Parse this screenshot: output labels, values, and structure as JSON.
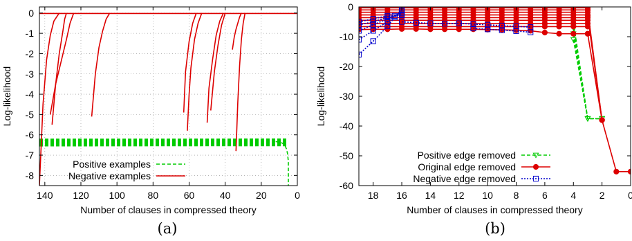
{
  "chart_data": [
    {
      "type": "line",
      "panel_label": "(a)",
      "xlabel": "Number of clauses in compressed theory",
      "ylabel": "Log-likelihood",
      "x_reversed": true,
      "xlim": [
        143,
        0
      ],
      "ylim": [
        -8.5,
        0.3
      ],
      "xticks": [
        140,
        120,
        100,
        80,
        60,
        40,
        20,
        0
      ],
      "yticks": [
        0,
        -1,
        -2,
        -3,
        -4,
        -5,
        -6,
        -7,
        -8
      ],
      "grid": true,
      "legend_position": "bottom-left",
      "series": [
        {
          "name": "Positive examples",
          "color": "#00cc00",
          "dash": "dashed",
          "bands": [
            {
              "x": [
                143,
                5
              ],
              "y_top": -6.2,
              "y_bottom": -6.55
            },
            {
              "x": [
                143,
                121
              ],
              "y_top": -6.3,
              "y_bottom": -6.5
            }
          ],
          "tail": {
            "x": [
              12,
              9,
              7,
              6,
              5.5,
              5,
              5,
              5
            ],
            "y": [
              -6.33,
              -6.38,
              -6.48,
              -6.7,
              -6.9,
              -7.3,
              -8.0,
              -8.5
            ]
          }
        },
        {
          "name": "Negative examples",
          "color": "#dd0000",
          "dash": "solid",
          "flat": {
            "x": [
              143,
              0
            ],
            "y": [
              -0.02,
              -0.02
            ]
          },
          "curves": [
            {
              "x": [
                143,
                141,
                139,
                137,
                135,
                132
              ],
              "y": [
                -8.5,
                -4.5,
                -2.3,
                -1.1,
                -0.4,
                0
              ]
            },
            {
              "x": [
                136,
                134,
                132,
                130,
                129,
                128
              ],
              "y": [
                -5.5,
                -3.5,
                -2.0,
                -0.9,
                -0.3,
                0
              ]
            },
            {
              "x": [
                137,
                134,
                131,
                128,
                126,
                124
              ],
              "y": [
                -5.0,
                -3.5,
                -2.4,
                -1.3,
                -0.5,
                0
              ]
            },
            {
              "x": [
                114,
                112,
                110,
                108,
                106,
                104
              ],
              "y": [
                -5.1,
                -3.0,
                -1.7,
                -0.9,
                -0.3,
                0
              ]
            },
            {
              "x": [
                63,
                62,
                60,
                58,
                56
              ],
              "y": [
                -4.9,
                -2.9,
                -1.4,
                -0.5,
                0
              ]
            },
            {
              "x": [
                61,
                60,
                59,
                57,
                55,
                53
              ],
              "y": [
                -5.8,
                -4.0,
                -2.7,
                -1.3,
                -0.5,
                0
              ]
            },
            {
              "x": [
                50,
                49,
                47,
                45,
                43,
                41
              ],
              "y": [
                -5.4,
                -3.7,
                -2.3,
                -1.1,
                -0.4,
                0
              ]
            },
            {
              "x": [
                48,
                46,
                44,
                42,
                40
              ],
              "y": [
                -4.8,
                -2.9,
                -1.6,
                -0.6,
                0
              ]
            },
            {
              "x": [
                36,
                35,
                34,
                33,
                32,
                31
              ],
              "y": [
                -1.8,
                -1.2,
                -0.8,
                -0.5,
                -0.2,
                0
              ]
            },
            {
              "x": [
                34,
                33,
                32,
                31,
                30,
                29
              ],
              "y": [
                -6.8,
                -4.4,
                -2.6,
                -1.3,
                -0.5,
                0
              ]
            }
          ]
        }
      ]
    },
    {
      "type": "line",
      "panel_label": "(b)",
      "xlabel": "Number of clauses in compressed theory",
      "ylabel": "Log-likelihood",
      "x_reversed": true,
      "xlim": [
        19,
        0
      ],
      "ylim": [
        -60,
        0
      ],
      "xticks": [
        18,
        16,
        14,
        12,
        10,
        8,
        6,
        4,
        2,
        0
      ],
      "yticks": [
        0,
        -10,
        -20,
        -30,
        -40,
        -50,
        -60
      ],
      "grid": false,
      "legend_position": "bottom-left",
      "series": [
        {
          "name": "Positive edge removed",
          "color": "#00cc00",
          "dash": "dashed",
          "marker": "triangle-down",
          "lines": [
            {
              "x": [
                4,
                3,
                2
              ],
              "y": [
                -5,
                -37.5,
                -37.5
              ]
            },
            {
              "x": [
                4,
                3,
                2
              ],
              "y": [
                -7,
                -37.5,
                -37.5
              ]
            },
            {
              "x": [
                4,
                3,
                2
              ],
              "y": [
                -9,
                -37.5,
                -37.5
              ]
            },
            {
              "x": [
                4,
                3,
                2
              ],
              "y": [
                -11,
                -37.5,
                -37.5
              ]
            }
          ]
        },
        {
          "name": "Original edge removed",
          "color": "#dd0000",
          "dash": "solid",
          "marker": "circle",
          "lines": [
            {
              "x": [
                19,
                18,
                17,
                16,
                15,
                14,
                13,
                12,
                11,
                10,
                9,
                8,
                7,
                6,
                5,
                4,
                3
              ],
              "y": [
                -0.3,
                -0.3,
                -0.3,
                -0.3,
                -0.3,
                -0.3,
                -0.3,
                -0.3,
                -0.3,
                -0.3,
                -0.3,
                -0.3,
                -0.3,
                -0.3,
                -0.3,
                -0.3,
                -0.3
              ]
            },
            {
              "x": [
                19,
                18,
                17,
                16,
                15,
                14,
                13,
                12,
                11,
                10,
                9,
                8,
                7,
                6,
                5,
                4,
                3
              ],
              "y": [
                -1,
                -1,
                -1,
                -1,
                -1,
                -1,
                -1,
                -1,
                -1,
                -1,
                -1,
                -1,
                -1,
                -1,
                -1,
                -1,
                -1
              ]
            },
            {
              "x": [
                19,
                18,
                17,
                16,
                15,
                14,
                13,
                12,
                11,
                10,
                9,
                8,
                7,
                6,
                5,
                4,
                3
              ],
              "y": [
                -1.8,
                -1.8,
                -1.8,
                -1.8,
                -1.8,
                -1.8,
                -1.8,
                -1.8,
                -1.8,
                -1.8,
                -1.8,
                -1.8,
                -1.8,
                -1.8,
                -1.8,
                -1.8,
                -1.8
              ]
            },
            {
              "x": [
                19,
                18,
                17,
                16,
                15,
                14,
                13,
                12,
                11,
                10,
                9,
                8,
                7,
                6,
                5,
                4,
                3
              ],
              "y": [
                -2.7,
                -2.7,
                -2.7,
                -2.7,
                -2.7,
                -2.7,
                -2.7,
                -2.7,
                -2.7,
                -2.7,
                -2.7,
                -2.7,
                -2.7,
                -2.7,
                -2.7,
                -2.7,
                -2.7
              ]
            },
            {
              "x": [
                19,
                18,
                17,
                16,
                15,
                14,
                13,
                12,
                11,
                10,
                9,
                8,
                7,
                6,
                5,
                4,
                3
              ],
              "y": [
                -3.6,
                -3.6,
                -3.6,
                -3.6,
                -3.6,
                -3.6,
                -3.6,
                -3.6,
                -3.6,
                -3.6,
                -3.6,
                -3.6,
                -3.6,
                -3.6,
                -3.6,
                -3.6,
                -3.6
              ]
            },
            {
              "x": [
                19,
                18,
                17,
                16,
                15,
                14,
                13,
                12,
                11,
                10,
                9,
                8,
                7,
                6,
                5,
                4,
                3
              ],
              "y": [
                -4.5,
                -4.5,
                -4.5,
                -4.5,
                -4.5,
                -4.5,
                -4.5,
                -4.5,
                -4.5,
                -4.5,
                -4.5,
                -4.5,
                -4.5,
                -4.5,
                -4.5,
                -4.5,
                -4.5
              ]
            },
            {
              "x": [
                19,
                18,
                17,
                16,
                15,
                14,
                13,
                12,
                11,
                10,
                9,
                8,
                7,
                6,
                5,
                4,
                3
              ],
              "y": [
                -5.6,
                -5.6,
                -5.6,
                -5.6,
                -5.6,
                -5.6,
                -5.6,
                -5.6,
                -5.6,
                -5.6,
                -5.6,
                -5.6,
                -5.6,
                -5.6,
                -5.6,
                -5.6,
                -5.6
              ]
            },
            {
              "x": [
                19,
                18,
                17,
                16,
                15,
                14,
                13,
                12,
                11,
                10,
                9,
                8,
                7,
                6,
                5,
                4,
                3
              ],
              "y": [
                -6.6,
                -6.6,
                -6.6,
                -6.6,
                -6.6,
                -6.6,
                -6.6,
                -6.6,
                -6.6,
                -6.6,
                -6.6,
                -6.6,
                -6.6,
                -6.6,
                -6.6,
                -6.6,
                -6.6
              ]
            },
            {
              "x": [
                19,
                18,
                17,
                16,
                15,
                14,
                13,
                12,
                11,
                10,
                9,
                8,
                7,
                6,
                5,
                4,
                3
              ],
              "y": [
                -7.6,
                -7.5,
                -7.5,
                -7.4,
                -7.4,
                -7.5,
                -7.5,
                -7.5,
                -7.5,
                -7.6,
                -7.7,
                -7.8,
                -8.0,
                -8.6,
                -9.0,
                -9.0,
                -9.0
              ]
            },
            {
              "x": [
                3,
                2,
                1,
                0
              ],
              "y": [
                -9,
                -38,
                -55.3,
                -55.3
              ]
            },
            {
              "x": [
                3,
                2
              ],
              "y": [
                -1,
                -38
              ]
            },
            {
              "x": [
                3,
                2
              ],
              "y": [
                -3,
                -38
              ]
            }
          ]
        },
        {
          "name": "Negative edge removed",
          "color": "#0000cc",
          "dash": "dotted",
          "marker": "square-open",
          "lines": [
            {
              "x": [
                19,
                18,
                17,
                16.5,
                16
              ],
              "y": [
                -16,
                -11.5,
                -6.5,
                -3.5,
                -1.0
              ]
            },
            {
              "x": [
                19,
                18,
                17,
                16.5,
                16
              ],
              "y": [
                -11,
                -8,
                -5,
                -3,
                -1.5
              ]
            },
            {
              "x": [
                19,
                18,
                17,
                16
              ],
              "y": [
                -8,
                -6,
                -4,
                -2
              ]
            },
            {
              "x": [
                19,
                18,
                17,
                16
              ],
              "y": [
                -6,
                -5,
                -3.5,
                -2.5
              ]
            },
            {
              "x": [
                19,
                18,
                17,
                16
              ],
              "y": [
                -5,
                -4,
                -3,
                -2.8
              ]
            },
            {
              "x": [
                16,
                15,
                14,
                13,
                12,
                11,
                10,
                9,
                8,
                7
              ],
              "y": [
                -5.0,
                -5.3,
                -5.5,
                -5.6,
                -5.5,
                -5.8,
                -6.0,
                -6.3,
                -6.5,
                -6.8
              ]
            },
            {
              "x": [
                11,
                10,
                9,
                8,
                7
              ],
              "y": [
                -7.2,
                -7.5,
                -7.8,
                -8.1,
                -8.5
              ]
            }
          ]
        }
      ]
    }
  ]
}
